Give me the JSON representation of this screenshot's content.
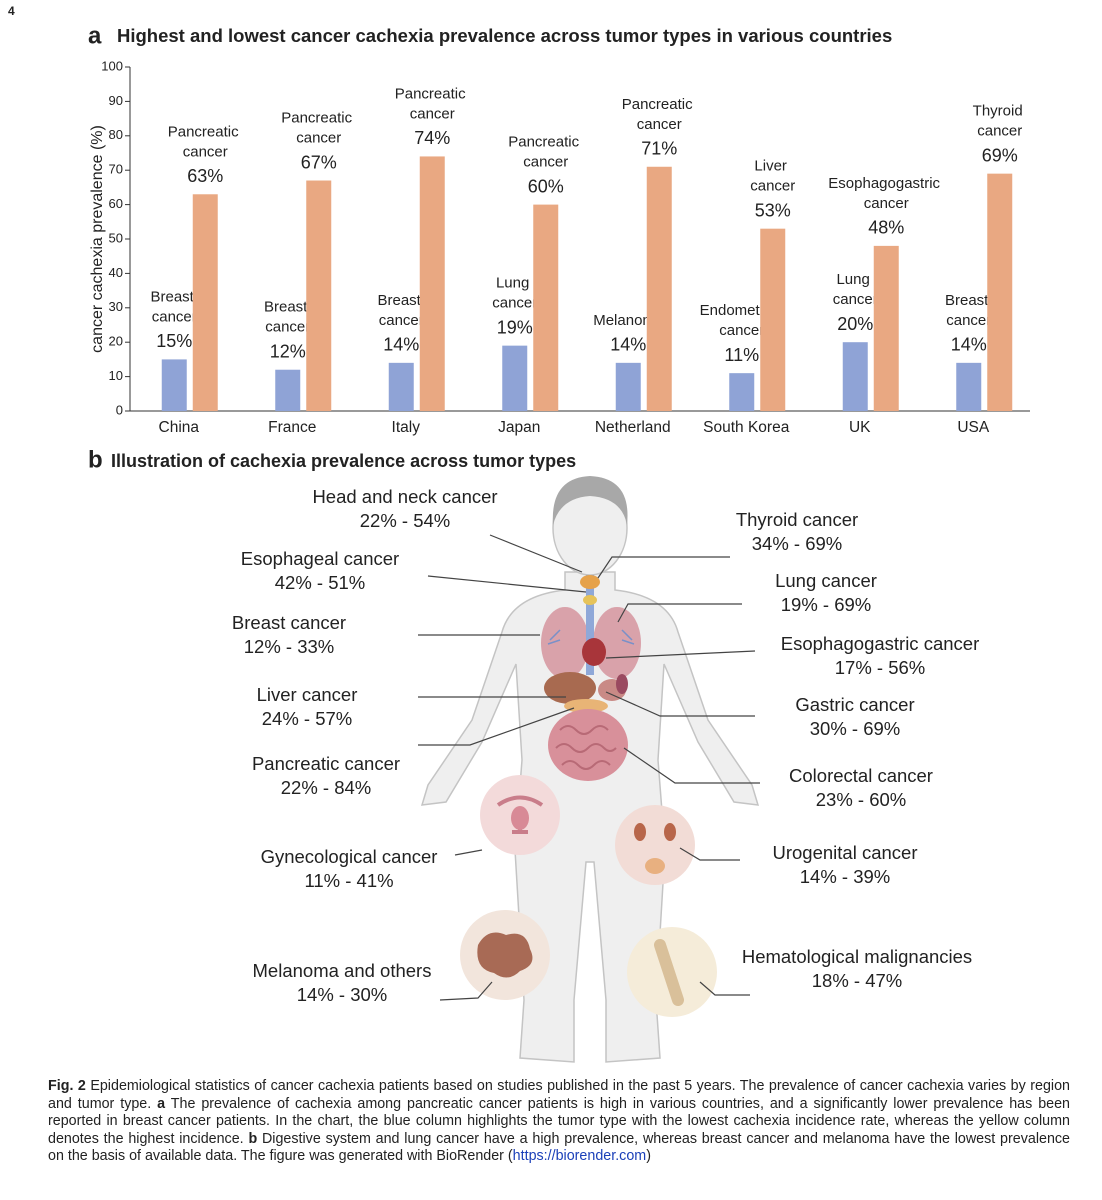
{
  "page_number": "4",
  "chart_data": {
    "type": "bar",
    "panel_label": "a",
    "title": "Highest and lowest cancer cachexia prevalence across tumor types in various countries",
    "y_label": "cancer cachexia prevalence (%)",
    "categories": [
      "China",
      "France",
      "Italy",
      "Japan",
      "Netherland",
      "South Korea",
      "UK",
      "USA"
    ],
    "series": [
      {
        "color": "#8fa3d6",
        "label_color": "#4f74c4",
        "tumors": [
          "Breast cancer",
          "Breast cancer",
          "Breast cancer",
          "Lung cancer",
          "Melanoma",
          "Endometrial cancer",
          "Lung cancer",
          "Breast cancer"
        ],
        "values": [
          15,
          12,
          14,
          19,
          14,
          11,
          20,
          14
        ],
        "value_labels": [
          "15%",
          "12%",
          "14%",
          "19%",
          "14%",
          "11%",
          "20%",
          "14%"
        ]
      },
      {
        "color": "#e9a882",
        "label_color": "#b5443a",
        "tumors": [
          "Pancreatic cancer",
          "Pancreatic cancer",
          "Pancreatic cancer",
          "Pancreatic cancer",
          "Pancreatic cancer",
          "Liver cancer",
          "Esophagogastric cancer",
          "Thyroid cancer"
        ],
        "values": [
          63,
          67,
          74,
          60,
          71,
          53,
          48,
          69
        ],
        "value_labels": [
          "63%",
          "67%",
          "74%",
          "60%",
          "71%",
          "53%",
          "48%",
          "69%"
        ]
      }
    ],
    "ylim": [
      0,
      100
    ],
    "yticks": [
      0,
      10,
      20,
      30,
      40,
      50,
      60,
      70,
      80,
      90,
      100
    ]
  },
  "illustration": {
    "panel_label": "b",
    "title": "Illustration of cachexia prevalence across tumor types",
    "items": [
      {
        "name": "Head and neck cancer",
        "range": "22% - 54%"
      },
      {
        "name": "Esophageal cancer",
        "range": "42% - 51%"
      },
      {
        "name": "Breast cancer",
        "range": "12% - 33%"
      },
      {
        "name": "Liver cancer",
        "range": "24% - 57%"
      },
      {
        "name": "Pancreatic cancer",
        "range": "22% - 84%"
      },
      {
        "name": "Gynecological cancer",
        "range": "11% - 41%"
      },
      {
        "name": "Melanoma and others",
        "range": "14% - 30%"
      },
      {
        "name": "Thyroid cancer",
        "range": "34% - 69%"
      },
      {
        "name": "Lung cancer",
        "range": "19% - 69%"
      },
      {
        "name": "Esophagogastric cancer",
        "range": "17% - 56%"
      },
      {
        "name": "Gastric cancer",
        "range": "30% - 69%"
      },
      {
        "name": "Colorectal cancer",
        "range": "23% - 60%"
      },
      {
        "name": "Urogenital cancer",
        "range": "14% - 39%"
      },
      {
        "name": "Hematological malignancies",
        "range": "18% - 47%"
      }
    ]
  },
  "caption": {
    "label": "Fig. 2",
    "text1": " Epidemiological statistics of cancer cachexia patients based on studies published in the past 5 years. The prevalence of cancer cachexia varies by region and tumor type. ",
    "a": "a",
    "text2": " The prevalence of cachexia among pancreatic cancer patients is high in various countries, and a significantly lower prevalence has been reported in breast cancer patients. In the chart, the blue column highlights the tumor type with the lowest cachexia incidence rate, whereas the yellow column denotes the highest incidence. ",
    "b": "b",
    "text3": " Digestive system and lung cancer have a high prevalence, whereas breast cancer and melanoma have the lowest prevalence on the basis of available data. The figure was generated with BioRender (",
    "link": "https://biorender.com",
    "text4": ")"
  }
}
